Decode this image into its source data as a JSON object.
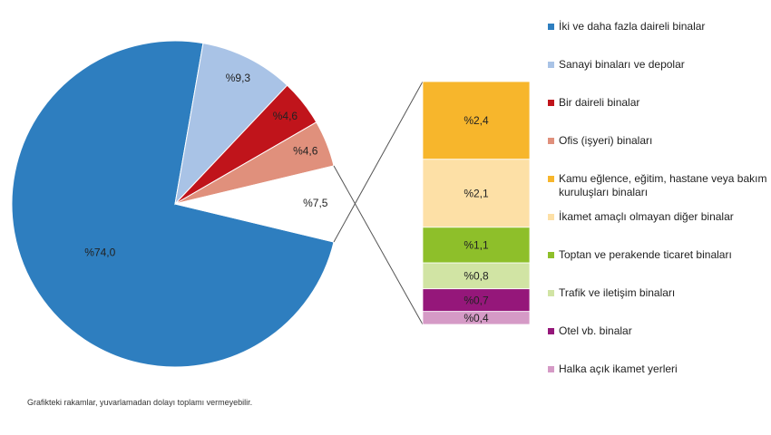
{
  "chart_data": {
    "type": "pie",
    "categories": [
      "İki ve daha fazla daireli binalar",
      "Sanayi binaları ve depolar",
      "Bir daireli binalar",
      "Ofis (işyeri) binaları",
      null
    ],
    "values": [
      74.0,
      9.3,
      4.6,
      4.6,
      7.5
    ],
    "value_labels": [
      "%74,0",
      "%9,3",
      "%4,6",
      "%4,6",
      "%7,5"
    ],
    "colors": [
      "#2e7ebf",
      "#a9c3e6",
      "#c0141b",
      "#e0907c",
      "#ffffff"
    ],
    "breakdown": {
      "categories": [
        "Kamu eğlence, eğitim, hastane veya bakım kuruluşları binaları",
        "İkamet amaçlı olmayan diğer binalar",
        "Toptan ve perakende ticaret binaları",
        "Trafik ve iletişim binaları",
        "Otel vb. binalar",
        "Halka açık ikamet yerleri"
      ],
      "values": [
        2.4,
        2.1,
        1.1,
        0.8,
        0.7,
        0.4
      ],
      "value_labels": [
        "%2,4",
        "%2,1",
        "%1,1",
        "%0,8",
        "%0,7",
        "%0,4"
      ],
      "colors": [
        "#f7b62c",
        "#fde0a6",
        "#8ebf2a",
        "#d1e4a4",
        "#95177a",
        "#d59ac6"
      ]
    },
    "note": "Grafikteki rakamlar, yuvarlamadan dolayı toplamı vermeyebilir."
  }
}
